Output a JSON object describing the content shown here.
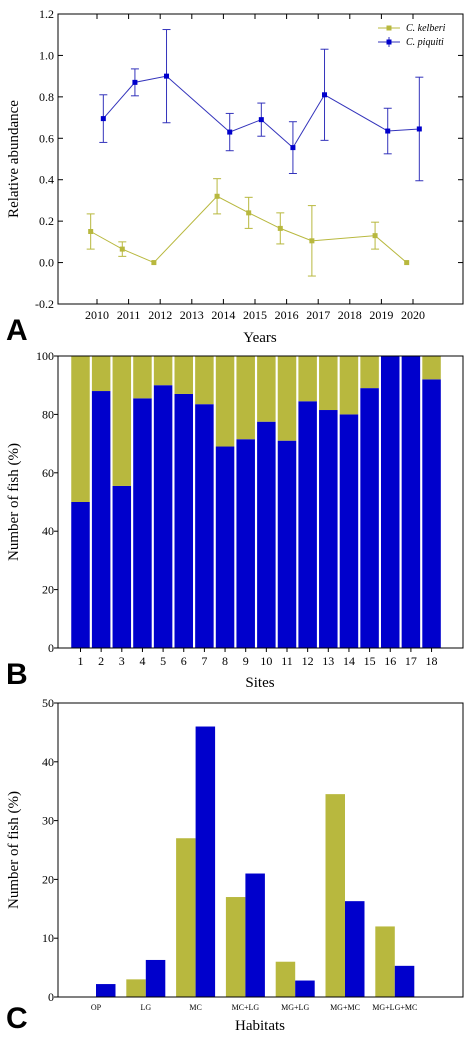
{
  "colors": {
    "kelberi": "#b8b83e",
    "piquiti": "#0000cc",
    "piquiti_line": "#3333bb",
    "axis": "#000000"
  },
  "chart_data": [
    {
      "panel": "A",
      "type": "line",
      "xlabel": "Years",
      "ylabel": "Relative abundance",
      "x_ticks": [
        "2010",
        "2011",
        "2012",
        "2013",
        "2014",
        "2015",
        "2016",
        "2017",
        "2018",
        "2019",
        "2020"
      ],
      "ylim": [
        -0.2,
        1.2
      ],
      "y_ticks": [
        "-0.2",
        "0.0",
        "0.2",
        "0.4",
        "0.6",
        "0.8",
        "1.0",
        "1.2"
      ],
      "legend_position": "top-right",
      "series": [
        {
          "name": "C. kelberi",
          "x": [
            2009.8,
            2010.8,
            2011.8,
            2013.8,
            2014.8,
            2015.8,
            2016.8,
            2018.8,
            2019.8
          ],
          "y": [
            0.15,
            0.065,
            0.0,
            0.32,
            0.24,
            0.165,
            0.105,
            0.13,
            0.0
          ],
          "err": [
            0.085,
            0.035,
            0.0,
            0.085,
            0.075,
            0.075,
            0.17,
            0.065,
            0.0
          ]
        },
        {
          "name": "C. piquiti",
          "x": [
            2010.2,
            2011.2,
            2012.2,
            2014.2,
            2015.2,
            2016.2,
            2017.2,
            2019.2,
            2020.2
          ],
          "y": [
            0.695,
            0.87,
            0.9,
            0.63,
            0.69,
            0.555,
            0.81,
            0.635,
            0.645
          ],
          "err": [
            0.115,
            0.065,
            0.225,
            0.09,
            0.08,
            0.125,
            0.22,
            0.11,
            0.25
          ]
        }
      ]
    },
    {
      "panel": "B",
      "type": "bar",
      "stacked": true,
      "xlabel": "Sites",
      "ylabel": "Number of fish (%)",
      "categories": [
        "1",
        "2",
        "3",
        "4",
        "5",
        "6",
        "7",
        "8",
        "9",
        "10",
        "11",
        "12",
        "13",
        "14",
        "15",
        "16",
        "17",
        "18"
      ],
      "ylim": [
        0,
        100
      ],
      "y_ticks": [
        "0",
        "20",
        "40",
        "60",
        "80",
        "100"
      ],
      "series": [
        {
          "name": "C. piquiti",
          "values": [
            50,
            88,
            55.5,
            85.5,
            90,
            87,
            83.5,
            69,
            71.5,
            77.5,
            71,
            84.5,
            81.5,
            80,
            89,
            100,
            100,
            92
          ]
        },
        {
          "name": "C. kelberi",
          "values": [
            50,
            12,
            44.5,
            14.5,
            10,
            13,
            16.5,
            31,
            28.5,
            22.5,
            29,
            15.5,
            18.5,
            20,
            11,
            0,
            0,
            8
          ]
        }
      ]
    },
    {
      "panel": "C",
      "type": "bar",
      "xlabel": "Habitats",
      "ylabel": "Number of fish (%)",
      "categories": [
        "OP",
        "LG",
        "MC",
        "MC+LG",
        "MG+LG",
        "MG+MC",
        "MG+LG+MC"
      ],
      "ylim": [
        0,
        50
      ],
      "y_ticks": [
        "0",
        "10",
        "20",
        "30",
        "40",
        "50"
      ],
      "series": [
        {
          "name": "C. kelberi",
          "values": [
            0,
            3,
            27,
            17,
            6,
            34.5,
            12
          ]
        },
        {
          "name": "C. piquiti",
          "values": [
            2.2,
            6.3,
            46,
            21,
            2.8,
            16.3,
            5.3
          ]
        }
      ]
    }
  ]
}
